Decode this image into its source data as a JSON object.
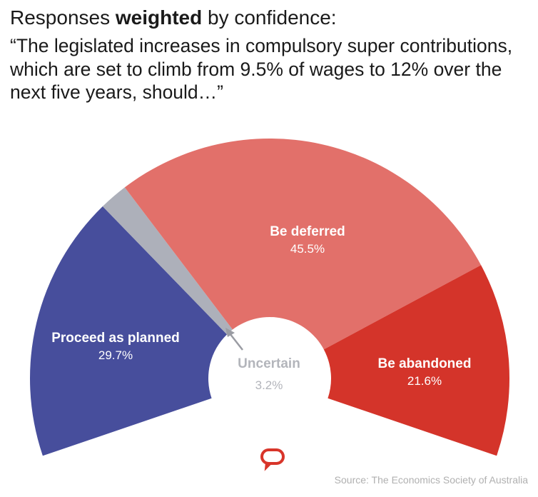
{
  "heading": {
    "prefix": "Responses ",
    "bold": "weighted",
    "suffix": " by confidence:"
  },
  "question": "“The legislated increases in compulsory super contributions, which are set to climb from 9.5% of wages to 12% over the next five years, should…”",
  "chart_data": {
    "type": "pie",
    "variant": "partial donut (arc gauge)",
    "slices": [
      {
        "label": "Proceed as planned",
        "value": 29.7,
        "display": "29.7%",
        "color": "#474e9c"
      },
      {
        "label": "Uncertain",
        "value": 3.2,
        "display": "3.2%",
        "color": "#adb0ba"
      },
      {
        "label": "Be deferred",
        "value": 45.5,
        "display": "45.5%",
        "color": "#e2706a"
      },
      {
        "label": "Be abandoned",
        "value": 21.6,
        "display": "21.6%",
        "color": "#d4342a"
      }
    ]
  },
  "logo": {
    "icon": "speech-bubble-icon",
    "color": "#d8352a"
  },
  "source": "Source: The Economics Society of Australia"
}
